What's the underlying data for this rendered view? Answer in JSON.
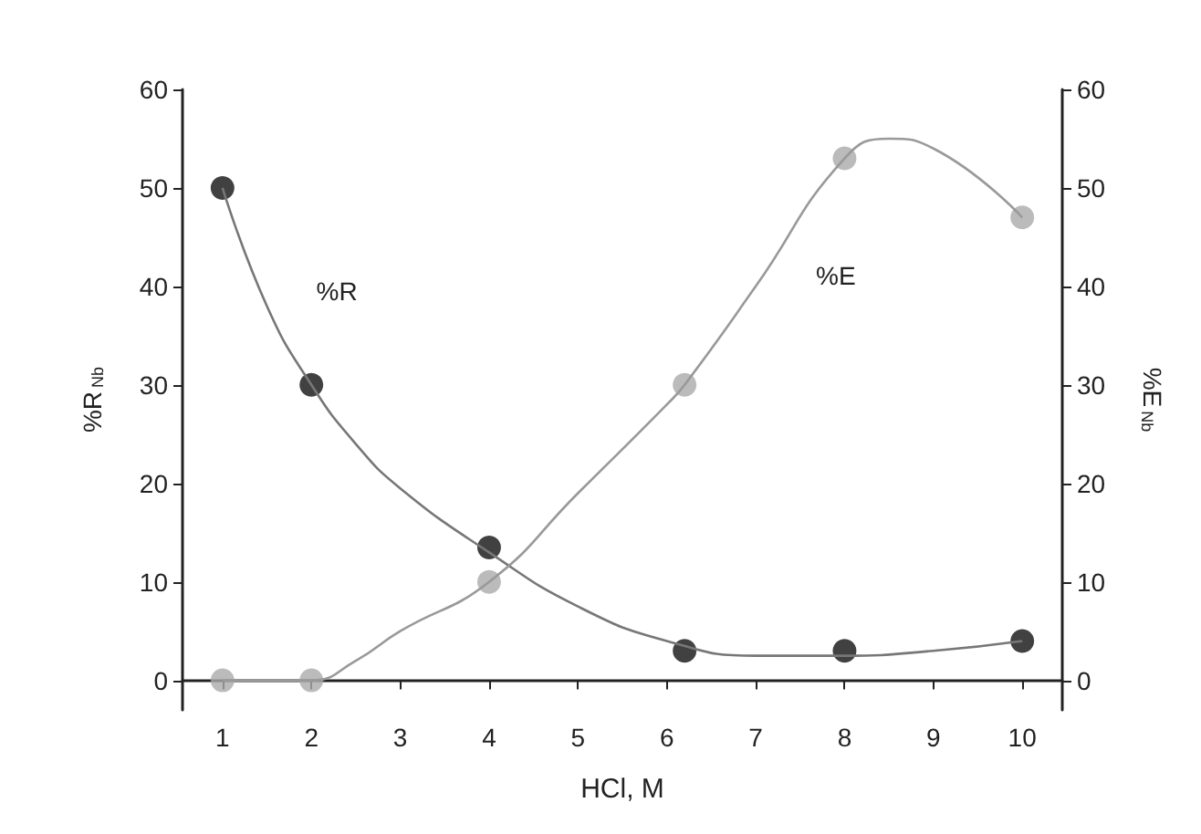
{
  "chart_data": {
    "type": "scatter",
    "xlabel": "HCl, M",
    "ylabel": "%R$_{Nb}$",
    "y2label": "%E$_{Nb}$",
    "xlim": [
      0.55,
      10.45
    ],
    "xticks": [
      1,
      2,
      3,
      4,
      5,
      6,
      7,
      8,
      9,
      10
    ],
    "ylim": [
      -3,
      60
    ],
    "yticks": [
      0,
      10,
      20,
      30,
      40,
      50,
      60
    ],
    "y2lim": [
      -3,
      60
    ],
    "y2ticks": [
      0,
      10,
      20,
      30,
      40,
      50,
      60
    ],
    "grid": false,
    "series": [
      {
        "color": "#111111",
        "marker": "circle",
        "x": [
          1,
          2,
          4,
          6.2,
          8,
          10
        ],
        "values": [
          50,
          30,
          13.5,
          3,
          3,
          4
        ]
      },
      {
        "color": "#aaaaaa",
        "marker": "circle",
        "x": [
          1,
          2,
          4,
          6.2,
          8,
          10
        ],
        "values": [
          0,
          0,
          10,
          30,
          53,
          47
        ]
      },
      {
        "type": "line",
        "name": "%R",
        "color": "#777777",
        "marker": "none",
        "x": [
          1,
          1.5,
          2,
          2.5,
          3,
          4,
          5,
          6,
          7,
          8,
          9,
          10
        ],
        "values": [
          50,
          38,
          30,
          24,
          19.5,
          13,
          7.5,
          4,
          2.5,
          2.5,
          3,
          4
        ]
      },
      {
        "type": "line",
        "name": "%E",
        "color": "#999999",
        "marker": "none",
        "x": [
          1,
          2,
          2.5,
          3,
          4,
          5,
          6,
          6.2,
          7,
          8,
          8.5,
          9,
          10
        ],
        "values": [
          0,
          0,
          2,
          5,
          10,
          19,
          28,
          30,
          40,
          53,
          55,
          54,
          47
        ]
      }
    ]
  }
}
